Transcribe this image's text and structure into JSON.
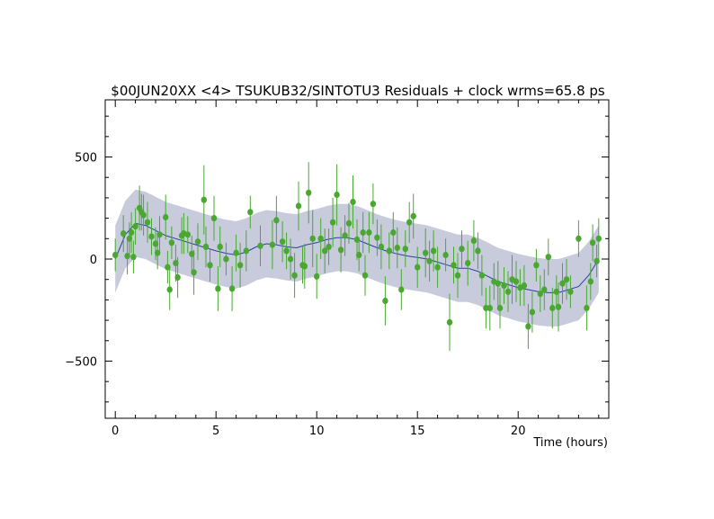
{
  "chart_data": {
    "type": "scatter",
    "title": "$00JUN20XX <4> TSUKUB32/SINTOTU3 Residuals + clock wrms=65.8  ps",
    "xlabel": "Time (hours)",
    "ylabel": "",
    "xlim": [
      -0.5,
      24.5
    ],
    "ylim": [
      -780,
      780
    ],
    "xticks": [
      0,
      5,
      10,
      15,
      20
    ],
    "yticks": [
      -500,
      0,
      500
    ],
    "grid": false,
    "colors": {
      "points": "#4aa832",
      "errorbars": "#4aa832",
      "band": "#c8cbdc",
      "clock_line": "#2b3fa8"
    },
    "clock_band_halfwidth": 165,
    "clock_curve": {
      "name": "",
      "x": [
        0,
        0.5,
        1,
        1.5,
        2,
        2.5,
        3,
        3.5,
        4,
        4.5,
        5,
        5.5,
        6,
        6.5,
        7,
        7.5,
        8,
        8.5,
        9,
        9.5,
        10,
        10.5,
        11,
        11.5,
        12,
        12.5,
        13,
        13.5,
        14,
        14.5,
        15,
        15.5,
        16,
        16.5,
        17,
        17.5,
        18,
        18.5,
        19,
        19.5,
        20,
        20.5,
        21,
        21.5,
        22,
        22.5,
        23,
        23.5,
        24
      ],
      "y": [
        0,
        120,
        175,
        165,
        140,
        115,
        100,
        85,
        70,
        55,
        40,
        28,
        20,
        35,
        60,
        75,
        70,
        60,
        55,
        70,
        80,
        95,
        105,
        105,
        95,
        75,
        55,
        38,
        25,
        15,
        8,
        0,
        -15,
        -30,
        -45,
        -45,
        -60,
        -85,
        -110,
        -125,
        -140,
        -150,
        -160,
        -165,
        -165,
        -150,
        -135,
        -80,
        0
      ]
    },
    "series": [
      {
        "name": "",
        "points": [
          {
            "x": 0.0,
            "y": 20,
            "err": 80
          },
          {
            "x": 0.4,
            "y": 125,
            "err": 90
          },
          {
            "x": 0.6,
            "y": 15,
            "err": 90
          },
          {
            "x": 0.7,
            "y": 100,
            "err": 80
          },
          {
            "x": 0.8,
            "y": 130,
            "err": 100
          },
          {
            "x": 0.9,
            "y": 10,
            "err": 80
          },
          {
            "x": 1.0,
            "y": 160,
            "err": 90
          },
          {
            "x": 1.2,
            "y": 250,
            "err": 110
          },
          {
            "x": 1.3,
            "y": 230,
            "err": 90
          },
          {
            "x": 1.4,
            "y": 215,
            "err": 100
          },
          {
            "x": 1.6,
            "y": 180,
            "err": 100
          },
          {
            "x": 1.8,
            "y": 110,
            "err": 90
          },
          {
            "x": 2.0,
            "y": 75,
            "err": 80
          },
          {
            "x": 2.1,
            "y": 30,
            "err": 80
          },
          {
            "x": 2.2,
            "y": 120,
            "err": 90
          },
          {
            "x": 2.5,
            "y": 205,
            "err": 110
          },
          {
            "x": 2.6,
            "y": -40,
            "err": 80
          },
          {
            "x": 2.7,
            "y": -150,
            "err": 100
          },
          {
            "x": 2.8,
            "y": 80,
            "err": 80
          },
          {
            "x": 3.0,
            "y": -20,
            "err": 90
          },
          {
            "x": 3.1,
            "y": -90,
            "err": 100
          },
          {
            "x": 3.3,
            "y": 115,
            "err": 90
          },
          {
            "x": 3.4,
            "y": 125,
            "err": 100
          },
          {
            "x": 3.6,
            "y": 120,
            "err": 90
          },
          {
            "x": 3.8,
            "y": 25,
            "err": 90
          },
          {
            "x": 3.9,
            "y": -65,
            "err": 110
          },
          {
            "x": 4.1,
            "y": 85,
            "err": 90
          },
          {
            "x": 4.4,
            "y": 290,
            "err": 170
          },
          {
            "x": 4.5,
            "y": 60,
            "err": 100
          },
          {
            "x": 4.7,
            "y": -30,
            "err": 80
          },
          {
            "x": 4.9,
            "y": 200,
            "err": 110
          },
          {
            "x": 5.1,
            "y": -145,
            "err": 110
          },
          {
            "x": 5.2,
            "y": 60,
            "err": 100
          },
          {
            "x": 5.5,
            "y": 0,
            "err": 80
          },
          {
            "x": 5.8,
            "y": -145,
            "err": 110
          },
          {
            "x": 6.0,
            "y": 30,
            "err": 90
          },
          {
            "x": 6.2,
            "y": -30,
            "err": 110
          },
          {
            "x": 6.5,
            "y": 40,
            "err": 100
          },
          {
            "x": 6.7,
            "y": 230,
            "err": 80
          },
          {
            "x": 7.2,
            "y": 65,
            "err": 100
          },
          {
            "x": 7.8,
            "y": 70,
            "err": 120
          },
          {
            "x": 8.0,
            "y": 190,
            "err": 120
          },
          {
            "x": 8.3,
            "y": 85,
            "err": 100
          },
          {
            "x": 8.5,
            "y": 40,
            "err": 90
          },
          {
            "x": 8.7,
            "y": 0,
            "err": 100
          },
          {
            "x": 8.9,
            "y": -80,
            "err": 110
          },
          {
            "x": 9.1,
            "y": 260,
            "err": 120
          },
          {
            "x": 9.3,
            "y": -30,
            "err": 90
          },
          {
            "x": 9.4,
            "y": -35,
            "err": 110
          },
          {
            "x": 9.6,
            "y": 325,
            "err": 150
          },
          {
            "x": 9.8,
            "y": 100,
            "err": 140
          },
          {
            "x": 10.0,
            "y": -85,
            "err": 110
          },
          {
            "x": 10.2,
            "y": 100,
            "err": 100
          },
          {
            "x": 10.4,
            "y": 40,
            "err": 110
          },
          {
            "x": 10.6,
            "y": 60,
            "err": 90
          },
          {
            "x": 10.8,
            "y": 180,
            "err": 120
          },
          {
            "x": 11.0,
            "y": 315,
            "err": 150
          },
          {
            "x": 11.2,
            "y": 45,
            "err": 110
          },
          {
            "x": 11.4,
            "y": 115,
            "err": 100
          },
          {
            "x": 11.6,
            "y": 175,
            "err": 100
          },
          {
            "x": 11.8,
            "y": 280,
            "err": 130
          },
          {
            "x": 12.0,
            "y": 95,
            "err": 100
          },
          {
            "x": 12.1,
            "y": 20,
            "err": 80
          },
          {
            "x": 12.3,
            "y": 130,
            "err": 100
          },
          {
            "x": 12.4,
            "y": -80,
            "err": 100
          },
          {
            "x": 12.6,
            "y": 130,
            "err": 100
          },
          {
            "x": 12.8,
            "y": 270,
            "err": 100
          },
          {
            "x": 13.0,
            "y": 105,
            "err": 90
          },
          {
            "x": 13.2,
            "y": 60,
            "err": 110
          },
          {
            "x": 13.4,
            "y": -205,
            "err": 120
          },
          {
            "x": 13.6,
            "y": 40,
            "err": 90
          },
          {
            "x": 13.8,
            "y": 130,
            "err": 100
          },
          {
            "x": 14.0,
            "y": 55,
            "err": 100
          },
          {
            "x": 14.2,
            "y": -150,
            "err": 100
          },
          {
            "x": 14.4,
            "y": 50,
            "err": 90
          },
          {
            "x": 14.6,
            "y": 180,
            "err": 100
          },
          {
            "x": 14.8,
            "y": 210,
            "err": 110
          },
          {
            "x": 15.0,
            "y": -40,
            "err": 100
          },
          {
            "x": 15.4,
            "y": 30,
            "err": 120
          },
          {
            "x": 15.6,
            "y": -10,
            "err": 100
          },
          {
            "x": 15.8,
            "y": 40,
            "err": 100
          },
          {
            "x": 16.0,
            "y": -40,
            "err": 100
          },
          {
            "x": 16.4,
            "y": 20,
            "err": 80
          },
          {
            "x": 16.6,
            "y": -310,
            "err": 140
          },
          {
            "x": 16.8,
            "y": -30,
            "err": 90
          },
          {
            "x": 17.0,
            "y": -80,
            "err": 110
          },
          {
            "x": 17.2,
            "y": 50,
            "err": 90
          },
          {
            "x": 17.5,
            "y": -20,
            "err": 110
          },
          {
            "x": 17.8,
            "y": 90,
            "err": 100
          },
          {
            "x": 18.0,
            "y": 40,
            "err": 90
          },
          {
            "x": 18.2,
            "y": -80,
            "err": 100
          },
          {
            "x": 18.4,
            "y": -240,
            "err": 100
          },
          {
            "x": 18.6,
            "y": -240,
            "err": 110
          },
          {
            "x": 18.8,
            "y": -110,
            "err": 90
          },
          {
            "x": 19.0,
            "y": -120,
            "err": 110
          },
          {
            "x": 19.1,
            "y": -240,
            "err": 100
          },
          {
            "x": 19.3,
            "y": -130,
            "err": 90
          },
          {
            "x": 19.5,
            "y": -160,
            "err": 100
          },
          {
            "x": 19.7,
            "y": -100,
            "err": 120
          },
          {
            "x": 19.9,
            "y": -110,
            "err": 100
          },
          {
            "x": 20.1,
            "y": -140,
            "err": 90
          },
          {
            "x": 20.3,
            "y": -130,
            "err": 100
          },
          {
            "x": 20.5,
            "y": -330,
            "err": 110
          },
          {
            "x": 20.7,
            "y": -260,
            "err": 100
          },
          {
            "x": 20.9,
            "y": -30,
            "err": 80
          },
          {
            "x": 21.1,
            "y": -170,
            "err": 90
          },
          {
            "x": 21.3,
            "y": -150,
            "err": 100
          },
          {
            "x": 21.5,
            "y": 10,
            "err": 90
          },
          {
            "x": 21.7,
            "y": -240,
            "err": 100
          },
          {
            "x": 21.9,
            "y": -160,
            "err": 80
          },
          {
            "x": 22.0,
            "y": -235,
            "err": 120
          },
          {
            "x": 22.2,
            "y": -120,
            "err": 100
          },
          {
            "x": 22.4,
            "y": -100,
            "err": 100
          },
          {
            "x": 22.6,
            "y": -160,
            "err": 80
          },
          {
            "x": 23.0,
            "y": 100,
            "err": 90
          },
          {
            "x": 23.4,
            "y": -240,
            "err": 110
          },
          {
            "x": 23.6,
            "y": -110,
            "err": 90
          },
          {
            "x": 23.7,
            "y": 80,
            "err": 90
          },
          {
            "x": 23.9,
            "y": -10,
            "err": 80
          },
          {
            "x": 24.0,
            "y": 100,
            "err": 100
          }
        ]
      }
    ]
  }
}
